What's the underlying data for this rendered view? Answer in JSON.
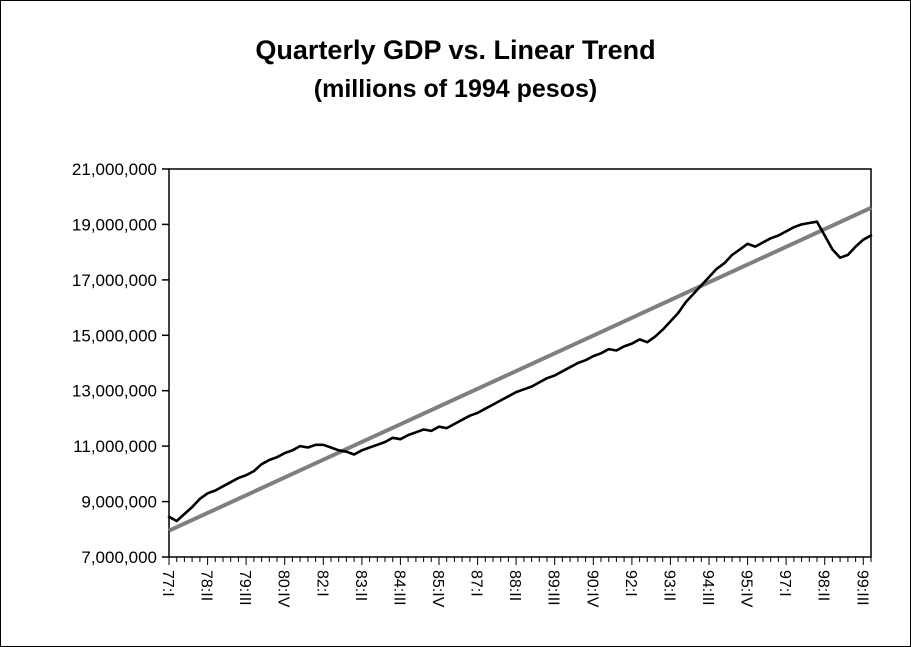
{
  "chart_data": {
    "type": "line",
    "title": "Quarterly GDP vs. Linear Trend",
    "subtitle": "(millions of 1994 pesos)",
    "x_unit": "quarter",
    "x_start": "1977:I",
    "x_end": "1999:IV",
    "x_label_every_n_quarters": 5,
    "x_tick_labels": [
      "77:I",
      "78:II",
      "79:III",
      "80:IV",
      "82:I",
      "83:II",
      "84:III",
      "85:IV",
      "87:I",
      "88:II",
      "89:III",
      "90:IV",
      "92:I",
      "93:II",
      "94:III",
      "95:IV",
      "97:I",
      "98:II",
      "99:III"
    ],
    "y_ticks": [
      7000000,
      9000000,
      11000000,
      13000000,
      15000000,
      17000000,
      19000000,
      21000000
    ],
    "ylim": [
      7000000,
      21000000
    ],
    "grid": false,
    "legend": "none",
    "series": [
      {
        "name": "Quarterly GDP",
        "type": "line",
        "color": "#000000",
        "stroke_width": 2.6,
        "values": [
          8450000,
          8300000,
          8550000,
          8800000,
          9100000,
          9300000,
          9400000,
          9550000,
          9700000,
          9850000,
          9950000,
          10100000,
          10350000,
          10500000,
          10600000,
          10750000,
          10850000,
          11000000,
          10950000,
          11050000,
          11050000,
          10950000,
          10850000,
          10800000,
          10700000,
          10850000,
          10950000,
          11050000,
          11150000,
          11300000,
          11250000,
          11400000,
          11500000,
          11600000,
          11550000,
          11700000,
          11650000,
          11800000,
          11950000,
          12100000,
          12200000,
          12350000,
          12500000,
          12650000,
          12800000,
          12950000,
          13050000,
          13150000,
          13300000,
          13450000,
          13550000,
          13700000,
          13850000,
          14000000,
          14100000,
          14250000,
          14350000,
          14500000,
          14450000,
          14600000,
          14700000,
          14850000,
          14750000,
          14950000,
          15200000,
          15500000,
          15800000,
          16200000,
          16500000,
          16800000,
          17100000,
          17400000,
          17600000,
          17900000,
          18100000,
          18300000,
          18200000,
          18350000,
          18500000,
          18600000,
          18750000,
          18900000,
          19000000,
          19050000,
          19100000,
          18600000,
          18100000,
          17800000,
          17900000,
          18200000,
          18450000,
          18600000
        ]
      },
      {
        "name": "Linear Trend",
        "type": "line",
        "color": "#7f7f7f",
        "stroke_width": 4,
        "trend_start": 7950000,
        "trend_end": 19600000
      }
    ]
  }
}
